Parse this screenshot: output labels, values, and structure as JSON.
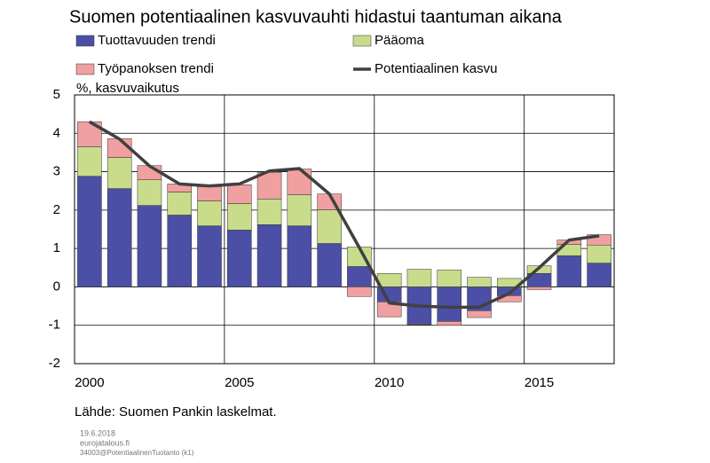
{
  "chart_data": {
    "type": "bar",
    "title": "Suomen potentiaalinen kasvuvauhti hidastui taantuman aikana",
    "ylabel": "%, kasvuvaikutus",
    "source": "Lähde: Suomen Pankin laskelmat.",
    "footer": [
      "19.6.2018",
      "eurojatalous.fi",
      "34003@PotentiaalinenTuotanto (k1)"
    ],
    "categories": [
      "2000",
      null,
      null,
      null,
      null,
      "2005",
      null,
      null,
      null,
      null,
      "2010",
      null,
      null,
      null,
      null,
      "2015",
      null,
      null
    ],
    "series": [
      {
        "name": "Tuottavuuden trendi",
        "color": "#4b4fa6",
        "values": [
          2.88,
          2.56,
          2.12,
          1.87,
          1.59,
          1.48,
          1.62,
          1.59,
          1.13,
          0.53,
          -0.39,
          -0.97,
          -0.9,
          -0.62,
          -0.23,
          0.35,
          0.81,
          0.62
        ]
      },
      {
        "name": "Pääoma",
        "color": "#c8dc8c",
        "values": [
          0.77,
          0.81,
          0.67,
          0.6,
          0.65,
          0.69,
          0.67,
          0.81,
          0.88,
          0.51,
          0.35,
          0.46,
          0.44,
          0.25,
          0.22,
          0.2,
          0.3,
          0.47
        ]
      },
      {
        "name": "Työpanoksen trendi",
        "color": "#f0a0a0",
        "values": [
          0.65,
          0.49,
          0.37,
          0.21,
          0.37,
          0.49,
          0.69,
          0.67,
          0.41,
          -0.25,
          -0.39,
          -0.02,
          -0.1,
          -0.18,
          -0.16,
          -0.07,
          0.11,
          0.27
        ]
      },
      {
        "name": "Potentiaalinen kasvu",
        "type": "line",
        "color": "#404040",
        "values": [
          4.3,
          3.85,
          3.15,
          2.68,
          2.63,
          2.68,
          3.02,
          3.08,
          2.42,
          1.02,
          -0.42,
          -0.5,
          -0.53,
          -0.53,
          -0.17,
          0.5,
          1.22,
          1.33
        ]
      }
    ],
    "ylim": [
      -2,
      5
    ],
    "yticks": [
      -2,
      -1,
      0,
      1,
      2,
      3,
      4,
      5
    ],
    "grid": true
  }
}
